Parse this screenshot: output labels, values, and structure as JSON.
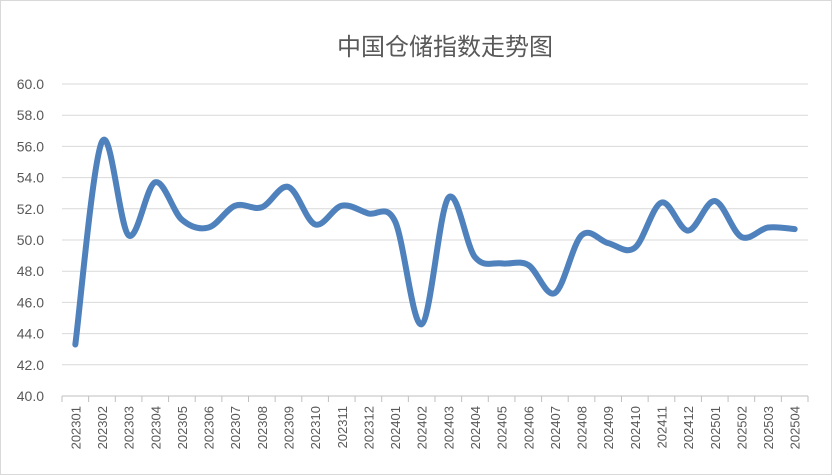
{
  "chart_data": {
    "type": "line",
    "title": "中国仓储指数走势图",
    "xlabel": "",
    "ylabel": "",
    "ylim": [
      40.0,
      60.0
    ],
    "ytick_step": 2.0,
    "grid": "horizontal",
    "legend": "none",
    "line_color": "#4f81bd",
    "categories": [
      "202301",
      "202302",
      "202303",
      "202304",
      "202305",
      "202306",
      "202307",
      "202308",
      "202309",
      "202310",
      "202311",
      "202312",
      "202401",
      "202402",
      "202403",
      "202404",
      "202405",
      "202406",
      "202407",
      "202408",
      "202409",
      "202410",
      "202411",
      "202412",
      "202501",
      "202502",
      "202503",
      "202504"
    ],
    "series": [
      {
        "values": [
          43.3,
          56.3,
          50.3,
          53.7,
          51.3,
          50.8,
          52.2,
          52.1,
          53.4,
          51.0,
          52.2,
          51.7,
          51.2,
          44.6,
          52.7,
          48.9,
          48.5,
          48.4,
          46.6,
          50.3,
          49.8,
          49.5,
          52.4,
          50.6,
          52.5,
          50.2,
          50.8,
          50.7
        ]
      }
    ]
  }
}
